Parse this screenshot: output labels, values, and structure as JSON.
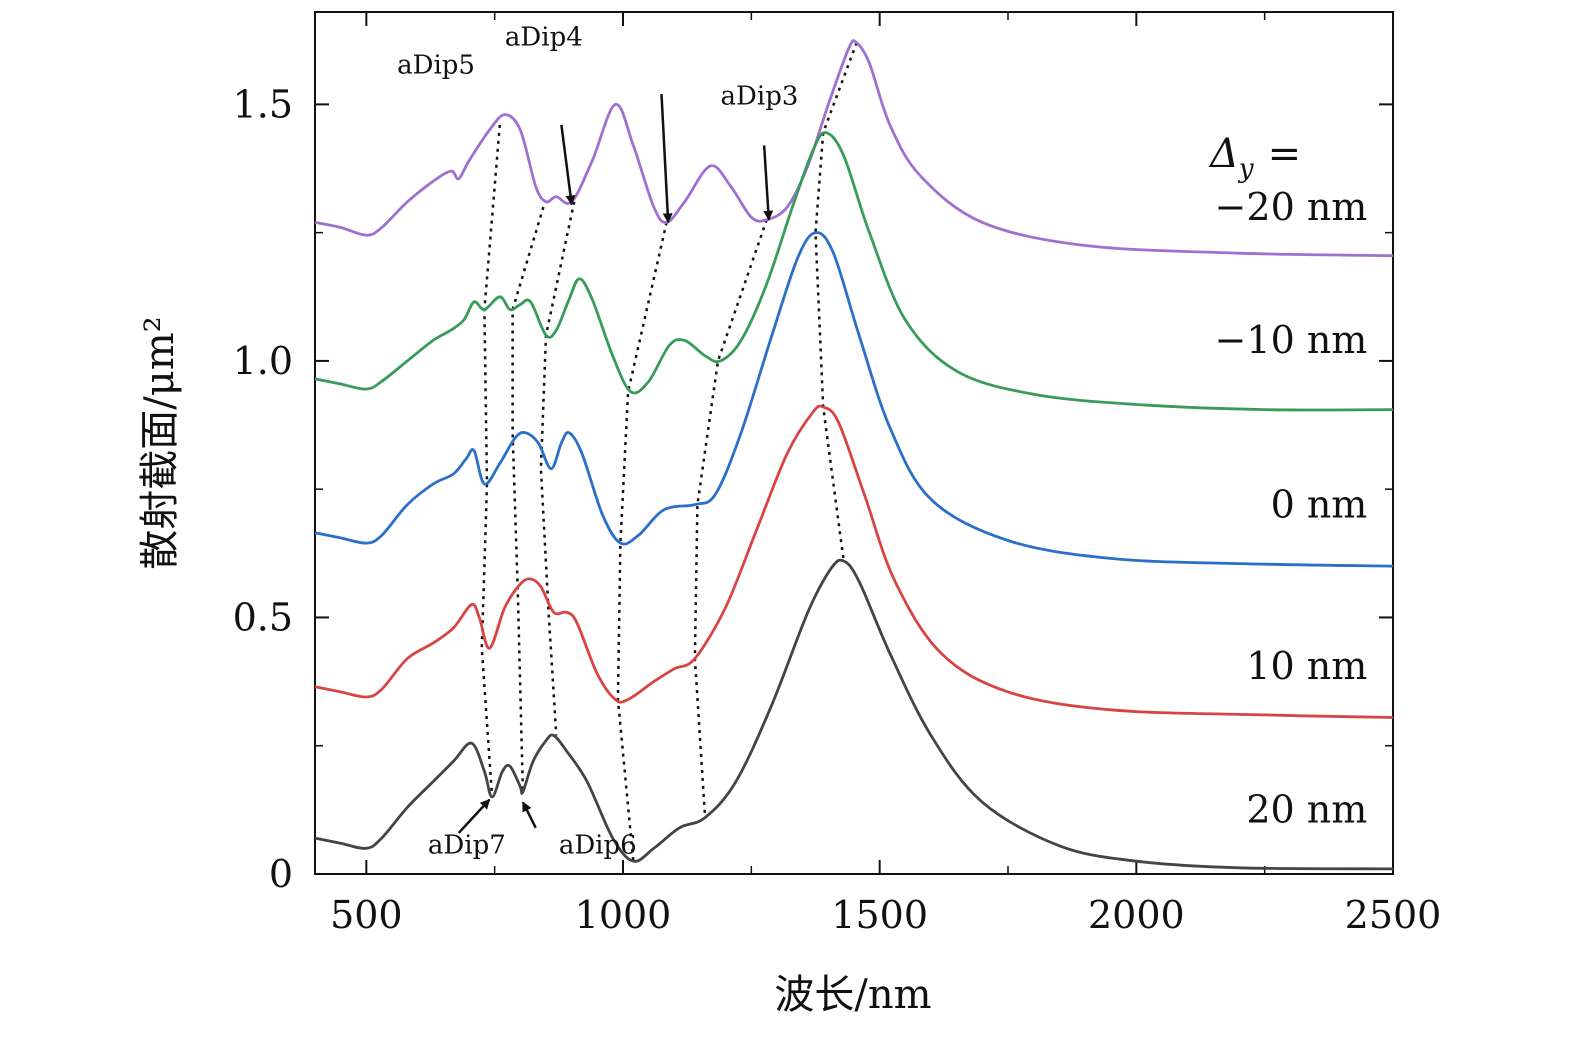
{
  "chart_data": {
    "type": "line",
    "xlabel": "波长/nm",
    "ylabel": "散射截面/μm²",
    "xlim": [
      400,
      2500
    ],
    "ylim": [
      0,
      1.68
    ],
    "xticks": [
      500,
      1000,
      1500,
      2000,
      2500
    ],
    "xtick_labels": [
      "500",
      "1000",
      "1500",
      "2000",
      "2500"
    ],
    "yticks": [
      0,
      0.5,
      1.0,
      1.5
    ],
    "ytick_labels": [
      "0",
      "0.5",
      "1.0",
      "1.5"
    ],
    "legend_title": "Δy =",
    "legend_title_sym": "Δ",
    "legend_title_sub": "y",
    "legend_title_eq": "=",
    "series": [
      {
        "name": "−20 nm",
        "color": "#a070d0",
        "points": [
          [
            400,
            1.27
          ],
          [
            450,
            1.26
          ],
          [
            500,
            1.245
          ],
          [
            530,
            1.26
          ],
          [
            580,
            1.31
          ],
          [
            630,
            1.35
          ],
          [
            665,
            1.37
          ],
          [
            680,
            1.355
          ],
          [
            700,
            1.39
          ],
          [
            740,
            1.45
          ],
          [
            770,
            1.48
          ],
          [
            800,
            1.45
          ],
          [
            830,
            1.34
          ],
          [
            850,
            1.31
          ],
          [
            870,
            1.32
          ],
          [
            900,
            1.31
          ],
          [
            940,
            1.39
          ],
          [
            985,
            1.5
          ],
          [
            1020,
            1.42
          ],
          [
            1060,
            1.3
          ],
          [
            1085,
            1.27
          ],
          [
            1120,
            1.31
          ],
          [
            1170,
            1.38
          ],
          [
            1210,
            1.34
          ],
          [
            1250,
            1.28
          ],
          [
            1280,
            1.275
          ],
          [
            1320,
            1.3
          ],
          [
            1360,
            1.38
          ],
          [
            1400,
            1.5
          ],
          [
            1440,
            1.61
          ],
          [
            1455,
            1.62
          ],
          [
            1480,
            1.58
          ],
          [
            1520,
            1.46
          ],
          [
            1580,
            1.36
          ],
          [
            1700,
            1.27
          ],
          [
            1900,
            1.225
          ],
          [
            2200,
            1.21
          ],
          [
            2500,
            1.205
          ]
        ]
      },
      {
        "name": "−10 nm",
        "color": "#3a9a5c",
        "points": [
          [
            400,
            0.965
          ],
          [
            450,
            0.955
          ],
          [
            500,
            0.945
          ],
          [
            530,
            0.96
          ],
          [
            580,
            1.0
          ],
          [
            630,
            1.04
          ],
          [
            665,
            1.06
          ],
          [
            690,
            1.08
          ],
          [
            710,
            1.115
          ],
          [
            730,
            1.1
          ],
          [
            760,
            1.125
          ],
          [
            780,
            1.1
          ],
          [
            800,
            1.11
          ],
          [
            820,
            1.115
          ],
          [
            850,
            1.05
          ],
          [
            870,
            1.06
          ],
          [
            895,
            1.12
          ],
          [
            915,
            1.16
          ],
          [
            940,
            1.12
          ],
          [
            980,
            1.01
          ],
          [
            1015,
            0.94
          ],
          [
            1050,
            0.96
          ],
          [
            1090,
            1.03
          ],
          [
            1120,
            1.04
          ],
          [
            1160,
            1.01
          ],
          [
            1190,
            1.0
          ],
          [
            1230,
            1.04
          ],
          [
            1280,
            1.15
          ],
          [
            1330,
            1.3
          ],
          [
            1370,
            1.41
          ],
          [
            1395,
            1.445
          ],
          [
            1430,
            1.4
          ],
          [
            1480,
            1.25
          ],
          [
            1550,
            1.08
          ],
          [
            1650,
            0.98
          ],
          [
            1800,
            0.935
          ],
          [
            2000,
            0.915
          ],
          [
            2250,
            0.905
          ],
          [
            2500,
            0.905
          ]
        ]
      },
      {
        "name": "0 nm",
        "color": "#2a6fc8",
        "points": [
          [
            400,
            0.665
          ],
          [
            450,
            0.655
          ],
          [
            500,
            0.645
          ],
          [
            530,
            0.66
          ],
          [
            580,
            0.72
          ],
          [
            630,
            0.76
          ],
          [
            670,
            0.78
          ],
          [
            695,
            0.81
          ],
          [
            710,
            0.825
          ],
          [
            730,
            0.76
          ],
          [
            760,
            0.8
          ],
          [
            790,
            0.85
          ],
          [
            810,
            0.86
          ],
          [
            835,
            0.84
          ],
          [
            860,
            0.79
          ],
          [
            880,
            0.84
          ],
          [
            895,
            0.86
          ],
          [
            920,
            0.82
          ],
          [
            960,
            0.7
          ],
          [
            995,
            0.645
          ],
          [
            1030,
            0.66
          ],
          [
            1080,
            0.71
          ],
          [
            1140,
            0.72
          ],
          [
            1180,
            0.74
          ],
          [
            1230,
            0.86
          ],
          [
            1290,
            1.05
          ],
          [
            1340,
            1.2
          ],
          [
            1375,
            1.25
          ],
          [
            1410,
            1.21
          ],
          [
            1460,
            1.05
          ],
          [
            1520,
            0.87
          ],
          [
            1600,
            0.73
          ],
          [
            1750,
            0.65
          ],
          [
            1950,
            0.615
          ],
          [
            2200,
            0.605
          ],
          [
            2500,
            0.6
          ]
        ]
      },
      {
        "name": "10 nm",
        "color": "#d84444",
        "points": [
          [
            400,
            0.365
          ],
          [
            450,
            0.355
          ],
          [
            500,
            0.345
          ],
          [
            530,
            0.36
          ],
          [
            580,
            0.42
          ],
          [
            630,
            0.45
          ],
          [
            670,
            0.48
          ],
          [
            705,
            0.525
          ],
          [
            720,
            0.5
          ],
          [
            740,
            0.44
          ],
          [
            770,
            0.52
          ],
          [
            800,
            0.565
          ],
          [
            820,
            0.575
          ],
          [
            840,
            0.56
          ],
          [
            865,
            0.51
          ],
          [
            890,
            0.51
          ],
          [
            910,
            0.49
          ],
          [
            950,
            0.39
          ],
          [
            985,
            0.34
          ],
          [
            1010,
            0.34
          ],
          [
            1060,
            0.375
          ],
          [
            1100,
            0.4
          ],
          [
            1140,
            0.42
          ],
          [
            1200,
            0.52
          ],
          [
            1260,
            0.67
          ],
          [
            1320,
            0.82
          ],
          [
            1370,
            0.9
          ],
          [
            1390,
            0.91
          ],
          [
            1420,
            0.88
          ],
          [
            1470,
            0.74
          ],
          [
            1530,
            0.57
          ],
          [
            1620,
            0.43
          ],
          [
            1750,
            0.355
          ],
          [
            1950,
            0.32
          ],
          [
            2250,
            0.31
          ],
          [
            2500,
            0.305
          ]
        ]
      },
      {
        "name": "20 nm",
        "color": "#444444",
        "points": [
          [
            400,
            0.07
          ],
          [
            450,
            0.06
          ],
          [
            500,
            0.05
          ],
          [
            530,
            0.07
          ],
          [
            580,
            0.13
          ],
          [
            630,
            0.18
          ],
          [
            670,
            0.22
          ],
          [
            705,
            0.255
          ],
          [
            730,
            0.2
          ],
          [
            745,
            0.15
          ],
          [
            765,
            0.2
          ],
          [
            780,
            0.21
          ],
          [
            800,
            0.17
          ],
          [
            805,
            0.16
          ],
          [
            825,
            0.22
          ],
          [
            850,
            0.26
          ],
          [
            865,
            0.27
          ],
          [
            890,
            0.24
          ],
          [
            930,
            0.18
          ],
          [
            980,
            0.07
          ],
          [
            1020,
            0.025
          ],
          [
            1060,
            0.05
          ],
          [
            1110,
            0.09
          ],
          [
            1160,
            0.11
          ],
          [
            1220,
            0.18
          ],
          [
            1290,
            0.33
          ],
          [
            1360,
            0.51
          ],
          [
            1405,
            0.595
          ],
          [
            1430,
            0.61
          ],
          [
            1460,
            0.57
          ],
          [
            1520,
            0.43
          ],
          [
            1600,
            0.27
          ],
          [
            1700,
            0.14
          ],
          [
            1850,
            0.055
          ],
          [
            2000,
            0.025
          ],
          [
            2200,
            0.012
          ],
          [
            2500,
            0.01
          ]
        ]
      }
    ],
    "series_labels": [
      {
        "text": "−20 nm",
        "x": 2450,
        "y": 1.275
      },
      {
        "text": "−10 nm",
        "x": 2450,
        "y": 1.015
      },
      {
        "text": "0 nm",
        "x": 2450,
        "y": 0.695
      },
      {
        "text": "10 nm",
        "x": 2450,
        "y": 0.38
      },
      {
        "text": "20 nm",
        "x": 2450,
        "y": 0.1
      }
    ],
    "dip_traces": [
      {
        "points": [
          [
            760,
            1.46
          ],
          [
            730,
            1.1
          ],
          [
            735,
            0.76
          ],
          [
            725,
            0.44
          ],
          [
            745,
            0.15
          ]
        ]
      },
      {
        "points": [
          [
            845,
            1.3
          ],
          [
            785,
            1.1
          ],
          [
            785,
            0.86
          ],
          [
            795,
            0.55
          ],
          [
            805,
            0.16
          ]
        ]
      },
      {
        "points": [
          [
            905,
            1.31
          ],
          [
            850,
            1.05
          ],
          [
            840,
            0.79
          ],
          [
            855,
            0.51
          ],
          [
            870,
            0.27
          ]
        ]
      },
      {
        "points": [
          [
            1085,
            1.27
          ],
          [
            1010,
            0.94
          ],
          [
            995,
            0.645
          ],
          [
            990,
            0.34
          ],
          [
            1020,
            0.025
          ]
        ]
      },
      {
        "points": [
          [
            1280,
            1.275
          ],
          [
            1185,
            1.0
          ],
          [
            1145,
            0.72
          ],
          [
            1140,
            0.42
          ],
          [
            1160,
            0.11
          ]
        ]
      },
      {
        "points": [
          [
            1455,
            1.62
          ],
          [
            1390,
            1.445
          ],
          [
            1375,
            1.25
          ],
          [
            1390,
            0.91
          ],
          [
            1430,
            0.61
          ]
        ]
      }
    ],
    "annotations": [
      {
        "text": "aDip5",
        "label_x": 560,
        "label_y": 1.56,
        "tip_x": 900,
        "tip_y": 1.305,
        "from_x": 880,
        "from_y": 1.46
      },
      {
        "text": "aDip4",
        "label_x": 770,
        "label_y": 1.615,
        "tip_x": 1088,
        "tip_y": 1.27,
        "from_x": 1075,
        "from_y": 1.52
      },
      {
        "text": "aDip3",
        "label_x": 1190,
        "label_y": 1.5,
        "tip_x": 1284,
        "tip_y": 1.275,
        "from_x": 1275,
        "from_y": 1.42
      },
      {
        "text": "aDip7",
        "label_x": 620,
        "label_y": 0.04,
        "tip_x": 740,
        "tip_y": 0.145,
        "from_x": 680,
        "from_y": 0.08
      },
      {
        "text": "aDip6",
        "label_x": 875,
        "label_y": 0.04,
        "tip_x": 805,
        "tip_y": 0.14,
        "from_x": 830,
        "from_y": 0.09
      }
    ]
  }
}
